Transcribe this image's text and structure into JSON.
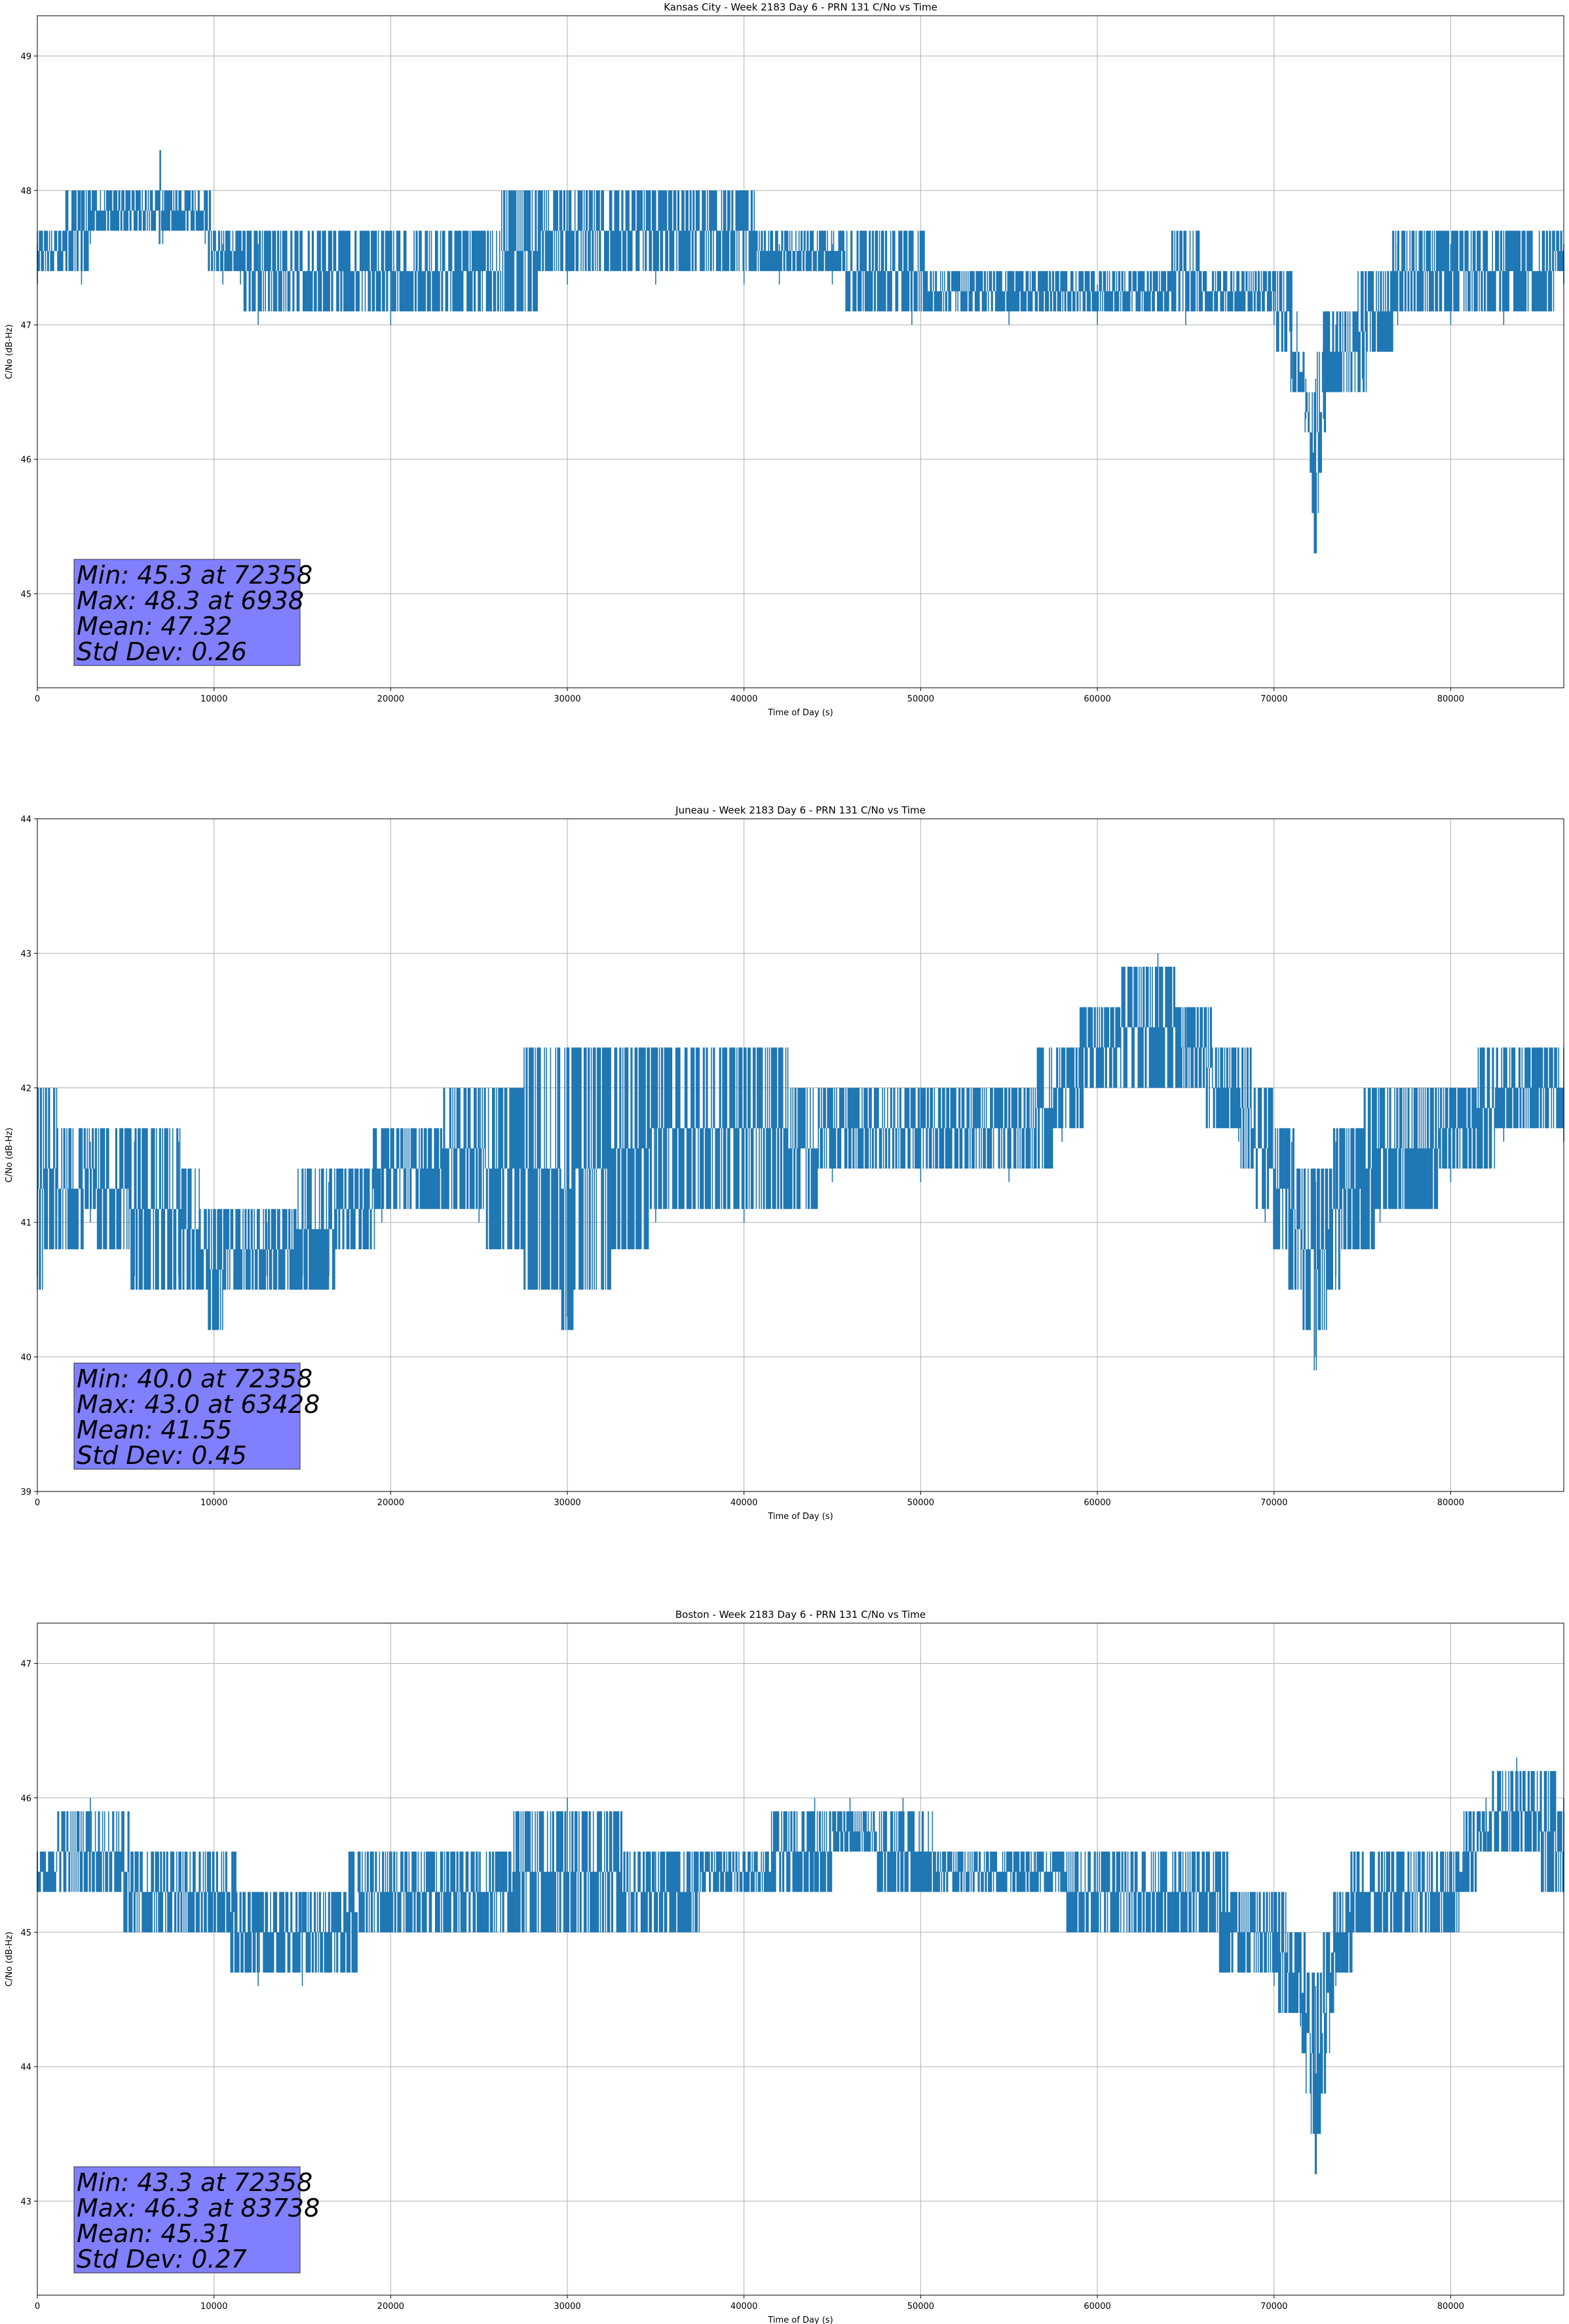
{
  "colors": {
    "line": "#1f77b4",
    "stats_box": "#8080ff",
    "grid": "#b0b0b0"
  },
  "chart_data": [
    {
      "type": "line",
      "title": "Kansas City - Week 2183 Day 6 - PRN 131 C/No vs Time",
      "xlabel": "Time of Day (s)",
      "ylabel": "C/No (dB-Hz)",
      "xlim": [
        0,
        86400
      ],
      "ylim": [
        44.3,
        49.3
      ],
      "xticks": [
        0,
        10000,
        20000,
        30000,
        40000,
        50000,
        60000,
        70000,
        80000
      ],
      "yticks": [
        45,
        46,
        47,
        48,
        49
      ],
      "grid": true,
      "stats": [
        "Min: 45.3 at 72358",
        "Max: 48.3 at 6938",
        "Mean: 47.32",
        "Std Dev: 0.26"
      ],
      "series": [
        {
          "x": [
            0,
            2500,
            3000,
            6900,
            6938,
            7100,
            9500,
            10500,
            11500,
            12500,
            20000,
            30000,
            35000,
            40000,
            42000,
            45000,
            49500,
            55000,
            60000,
            65000,
            70000,
            71000,
            71800,
            72358,
            72800,
            73500,
            75000,
            77000,
            80000,
            83000,
            86400
          ],
          "y_low": [
            47.3,
            47.3,
            47.6,
            47.6,
            47.6,
            47.6,
            47.6,
            47.3,
            47.3,
            47.0,
            47.0,
            47.3,
            47.3,
            47.3,
            47.3,
            47.3,
            47.0,
            47.0,
            47.0,
            47.0,
            47.0,
            46.6,
            46.3,
            45.3,
            46.3,
            46.6,
            46.6,
            47.0,
            47.0,
            47.0,
            47.3
          ],
          "y_high": [
            47.6,
            48.0,
            48.0,
            48.0,
            48.3,
            48.0,
            48.0,
            47.6,
            47.6,
            47.6,
            47.6,
            48.0,
            48.0,
            48.0,
            47.6,
            47.6,
            47.6,
            47.3,
            47.3,
            47.6,
            47.3,
            47.3,
            46.6,
            46.6,
            47.0,
            47.0,
            47.3,
            47.6,
            47.6,
            47.6,
            47.6
          ]
        }
      ]
    },
    {
      "type": "line",
      "title": "Juneau - Week 2183 Day 6 - PRN 131 C/No vs Time",
      "xlabel": "Time of Day (s)",
      "ylabel": "C/No (dB-Hz)",
      "xlim": [
        0,
        86400
      ],
      "ylim": [
        39,
        44
      ],
      "xticks": [
        0,
        10000,
        20000,
        30000,
        40000,
        50000,
        60000,
        70000,
        80000
      ],
      "yticks": [
        39,
        40,
        41,
        42,
        43,
        44
      ],
      "grid": true,
      "stats": [
        "Min: 40.0 at 72358",
        "Max: 43.0 at 63428",
        "Mean: 41.55",
        "Std Dev: 0.45"
      ],
      "series": [
        {
          "x": [
            0,
            3000,
            5500,
            8000,
            10000,
            13000,
            15000,
            16500,
            19500,
            25000,
            30000,
            35000,
            40000,
            45000,
            50000,
            55000,
            58000,
            60000,
            63428,
            65000,
            68000,
            69500,
            71000,
            72358,
            73500,
            76000,
            80000,
            83000,
            86400
          ],
          "y_low": [
            40.6,
            41.0,
            40.6,
            40.6,
            40.3,
            40.6,
            40.6,
            40.6,
            41.0,
            41.0,
            40.3,
            41.0,
            41.0,
            41.3,
            41.3,
            41.3,
            41.6,
            42.0,
            42.0,
            42.0,
            41.6,
            41.0,
            40.6,
            40.0,
            40.6,
            41.0,
            41.3,
            41.6,
            41.6
          ],
          "y_high": [
            42.0,
            41.6,
            41.6,
            41.6,
            41.0,
            41.0,
            41.3,
            41.3,
            41.6,
            42.0,
            42.3,
            42.3,
            42.3,
            42.0,
            42.0,
            42.0,
            42.3,
            42.6,
            43.0,
            42.6,
            42.3,
            42.0,
            41.6,
            41.3,
            41.6,
            42.0,
            42.0,
            42.3,
            42.3
          ]
        }
      ]
    },
    {
      "type": "line",
      "title": "Boston - Week 2183 Day 6 - PRN 131 C/No vs Time",
      "xlabel": "Time of Day (s)",
      "ylabel": "C/No (dB-Hz)",
      "xlim": [
        0,
        86400
      ],
      "ylim": [
        42.3,
        47.3
      ],
      "xticks": [
        0,
        10000,
        20000,
        30000,
        40000,
        50000,
        60000,
        70000,
        80000
      ],
      "yticks": [
        43,
        44,
        45,
        46,
        47
      ],
      "grid": true,
      "stats": [
        "Min: 43.3 at 72358",
        "Max: 46.3 at 83738",
        "Mean: 45.31",
        "Std Dev: 0.27"
      ],
      "series": [
        {
          "x": [
            0,
            3000,
            6500,
            10000,
            12500,
            15000,
            20000,
            25000,
            30000,
            35000,
            40000,
            44000,
            46000,
            49000,
            52000,
            56500,
            60000,
            65000,
            70000,
            71500,
            72358,
            73500,
            75000,
            80000,
            82000,
            83738,
            86400
          ],
          "y_low": [
            45.3,
            45.3,
            45.0,
            45.0,
            44.6,
            44.6,
            45.0,
            45.0,
            45.0,
            45.0,
            45.3,
            45.3,
            45.6,
            45.3,
            45.3,
            45.3,
            45.0,
            45.0,
            44.6,
            44.3,
            43.3,
            44.6,
            45.0,
            45.0,
            45.6,
            45.6,
            45.3
          ],
          "y_high": [
            45.6,
            46.0,
            45.6,
            45.6,
            45.3,
            45.3,
            45.6,
            45.6,
            46.0,
            45.6,
            45.6,
            46.0,
            46.0,
            46.0,
            45.6,
            45.6,
            45.6,
            45.6,
            45.3,
            45.0,
            44.6,
            45.3,
            45.6,
            45.6,
            46.0,
            46.3,
            46.0
          ]
        }
      ]
    }
  ]
}
